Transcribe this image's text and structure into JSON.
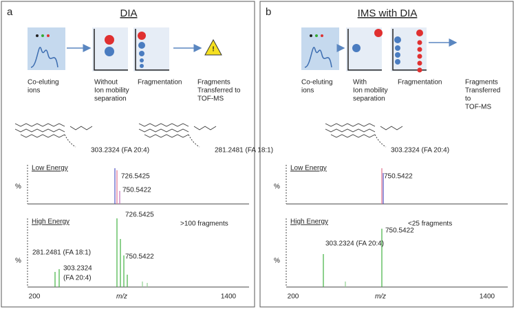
{
  "panels": [
    {
      "label": "a",
      "title": "DIA",
      "steps": [
        [
          "Co-eluting",
          "ions"
        ],
        [
          "Without",
          "Ion mobility",
          "separation"
        ],
        [
          "Fragmentation"
        ],
        [
          "Fragments",
          "Transferred to",
          "TOF-MS"
        ]
      ],
      "molecules": [
        "303.2324 (FA 20:4)",
        "281.2481 (FA 18:1)"
      ],
      "spectra": [
        {
          "name": "Low Energy",
          "y_label": "%",
          "peaks": [
            "726.5425",
            "750.5422"
          ]
        },
        {
          "name": "High Energy",
          "note": ">100 fragments",
          "y_label": "%",
          "peaks": [
            "726.5425",
            "750.5422",
            "281.2481 (FA 18:1)",
            "303.2324",
            "(FA 20:4)"
          ]
        }
      ],
      "x_axis": {
        "label": "m/z",
        "ticks": [
          200,
          1400
        ]
      }
    },
    {
      "label": "b",
      "title": "IMS with DIA",
      "steps": [
        [
          "Co-eluting",
          "ions"
        ],
        [
          "With",
          "Ion mobility",
          "separation"
        ],
        [
          "Fragmentation"
        ],
        [
          "Fragments",
          "Transferred",
          "to",
          "TOF-MS"
        ]
      ],
      "molecules": [
        "303.2324 (FA 20:4)"
      ],
      "spectra": [
        {
          "name": "Low Energy",
          "y_label": "%",
          "peaks": [
            "750.5422"
          ]
        },
        {
          "name": "High Energy",
          "note": "<25 fragments",
          "y_label": "%",
          "peaks": [
            "750.5422",
            "303.2324 (FA 20:4)"
          ]
        }
      ],
      "x_axis": {
        "label": "m/z",
        "ticks": [
          200,
          1400
        ]
      }
    }
  ]
}
